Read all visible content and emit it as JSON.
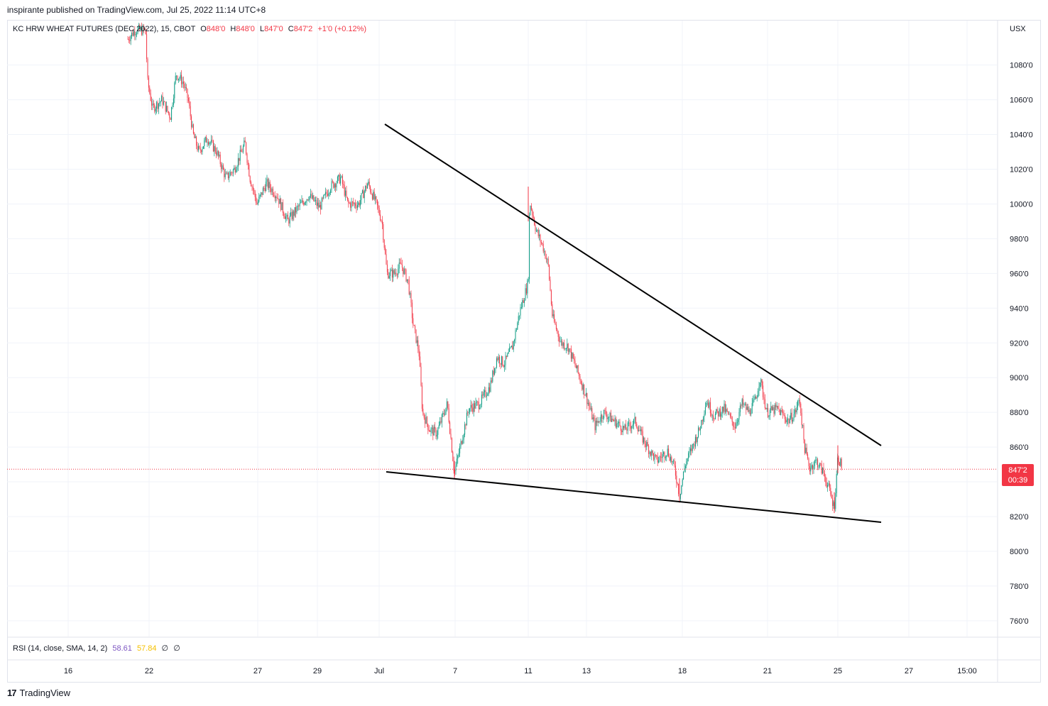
{
  "header": {
    "publish_line": "inspirante published on TradingView.com, Jul 25, 2022 11:14 UTC+8"
  },
  "legend": {
    "symbol": "KC HRW WHEAT FUTURES (DEC 2022), 15, CBOT",
    "open_label": "O",
    "open": "848'0",
    "high_label": "H",
    "high": "848'0",
    "low_label": "L",
    "low": "847'0",
    "close_label": "C",
    "close": "847'2",
    "change": "+1'0 (+0.12%)"
  },
  "rsi": {
    "label": "RSI (14, close, SMA, 14, 2)",
    "value1": "58.61",
    "value2": "57.84",
    "value3": "∅",
    "value4": "∅"
  },
  "price_axis": {
    "currency": "USX",
    "last_price": "847'2",
    "countdown": "00:39"
  },
  "brand": {
    "name": "TradingView",
    "logo": "17"
  },
  "colors": {
    "up": "#089981",
    "down": "#f23645",
    "grid": "#f0f3fa",
    "trendline": "#000000"
  },
  "chart_data": {
    "type": "candlestick",
    "title": "KC HRW WHEAT FUTURES (DEC 2022), 15, CBOT",
    "ylim": [
      750,
      1100
    ],
    "y_ticks": [
      {
        "value": 1080,
        "label": "1080'0"
      },
      {
        "value": 1060,
        "label": "1060'0"
      },
      {
        "value": 1040,
        "label": "1040'0"
      },
      {
        "value": 1020,
        "label": "1020'0"
      },
      {
        "value": 1000,
        "label": "1000'0"
      },
      {
        "value": 980,
        "label": "980'0"
      },
      {
        "value": 960,
        "label": "960'0"
      },
      {
        "value": 940,
        "label": "940'0"
      },
      {
        "value": 920,
        "label": "920'0"
      },
      {
        "value": 900,
        "label": "900'0"
      },
      {
        "value": 880,
        "label": "880'0"
      },
      {
        "value": 860,
        "label": "860'0"
      },
      {
        "value": 820,
        "label": "820'0"
      },
      {
        "value": 800,
        "label": "800'0"
      },
      {
        "value": 780,
        "label": "780'0"
      },
      {
        "value": 760,
        "label": "760'0"
      }
    ],
    "x_ticks": [
      "16",
      "22",
      "27",
      "29",
      "Jul",
      "7",
      "11",
      "13",
      "18",
      "21",
      "25",
      "27",
      "15:00"
    ],
    "last_price": 847.25,
    "price_path": [
      [
        0.0,
        1095
      ],
      [
        0.01,
        1100
      ],
      [
        0.02,
        1075
      ],
      [
        0.035,
        1060
      ],
      [
        0.05,
        1055
      ],
      [
        0.06,
        1045
      ],
      [
        0.075,
        1080
      ],
      [
        0.09,
        1075
      ],
      [
        0.105,
        1065
      ],
      [
        0.12,
        1030
      ],
      [
        0.14,
        1040
      ],
      [
        0.16,
        1030
      ],
      [
        0.18,
        1015
      ],
      [
        0.2,
        1025
      ],
      [
        0.22,
        1035
      ],
      [
        0.24,
        1020
      ],
      [
        0.26,
        1005
      ],
      [
        0.28,
        1015
      ],
      [
        0.3,
        1010
      ],
      [
        0.32,
        995
      ],
      [
        0.34,
        990
      ],
      [
        0.36,
        998
      ],
      [
        0.38,
        1000
      ],
      [
        0.4,
        1005
      ],
      [
        0.42,
        1010
      ],
      [
        0.44,
        998
      ],
      [
        0.46,
        1003
      ],
      [
        0.48,
        1010
      ],
      [
        0.5,
        1015
      ],
      [
        0.52,
        1005
      ],
      [
        0.54,
        997
      ],
      [
        0.56,
        1010
      ],
      [
        0.58,
        1015
      ],
      [
        0.6,
        1005
      ],
      [
        0.62,
        995
      ],
      [
        0.64,
        1000
      ],
      [
        0.66,
        1005
      ],
      [
        0.68,
        998
      ],
      [
        0.7,
        1010
      ],
      [
        0.72,
        1005
      ],
      [
        0.74,
        995
      ]
    ],
    "price_path_days": [
      [
        0.0,
        994
      ],
      [
        0.02,
        972
      ],
      [
        0.05,
        965
      ],
      [
        0.07,
        950
      ],
      [
        0.1,
        925
      ],
      [
        0.12,
        912
      ],
      [
        0.14,
        885
      ],
      [
        0.17,
        872
      ],
      [
        0.2,
        862
      ],
      [
        0.23,
        878
      ],
      [
        0.26,
        870
      ],
      [
        0.28,
        883
      ],
      [
        0.3,
        842
      ],
      [
        0.33,
        860
      ],
      [
        0.36,
        875
      ],
      [
        0.39,
        880
      ],
      [
        0.42,
        890
      ],
      [
        0.45,
        900
      ],
      [
        0.48,
        915
      ],
      [
        0.51,
        910
      ],
      [
        0.54,
        935
      ],
      [
        0.57,
        950
      ]
    ],
    "trendlines": [
      {
        "name": "",
        "points": [
          [
            "Jul 1",
            1046
          ],
          [
            "Jul 26",
            862
          ]
        ]
      },
      {
        "name": "",
        "points": [
          [
            "Jul 1",
            845
          ],
          [
            "Jul 26",
            817
          ]
        ]
      }
    ]
  }
}
